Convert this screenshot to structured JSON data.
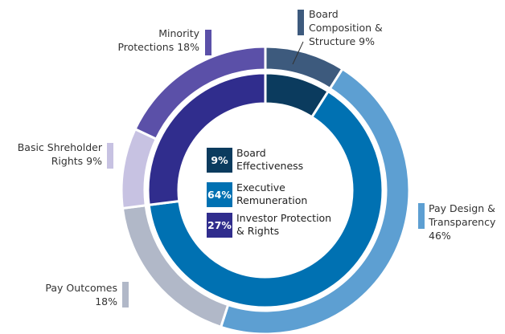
{
  "chart_data": {
    "type": "nested-donut",
    "outer": {
      "names": [
        "Board Composition & Structure",
        "Pay Design & Transparency",
        "Pay Outcomes",
        "Basic Shreholder Rights",
        "Minority Protections"
      ],
      "values": [
        9,
        46,
        18,
        9,
        18
      ],
      "value_labels": [
        "9%",
        "46%",
        "18%",
        "9%",
        "18%"
      ],
      "colors": [
        "#3d5a7d",
        "#5d9fd2",
        "#b1b8c8",
        "#c7c2e2",
        "#5b50a8"
      ]
    },
    "inner": {
      "names": [
        "Board Effectiveness",
        "Executive Remuneration",
        "Investor Protection & Rights"
      ],
      "values": [
        9,
        64,
        27
      ],
      "value_labels": [
        "9%",
        "64%",
        "27%"
      ],
      "colors": [
        "#0b3b5e",
        "#0071b2",
        "#302d8d"
      ]
    }
  }
}
